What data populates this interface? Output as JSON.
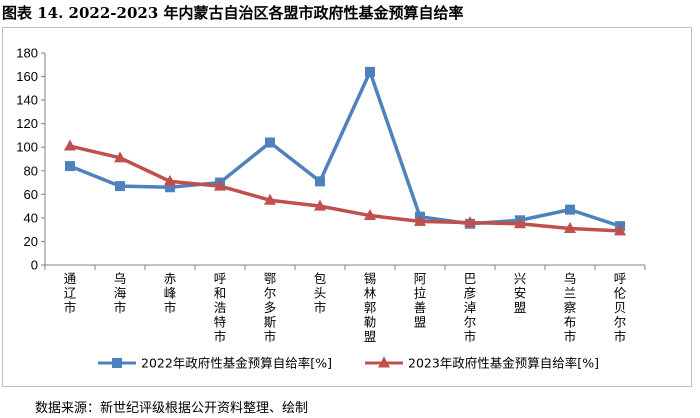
{
  "title": "图表 14. 2022-2023 年内蒙古自治区各盟市政府性基金预算自给率",
  "source": "数据来源：新世纪评级根据公开资料整理、绘制",
  "chart_data": {
    "type": "line",
    "categories": [
      "通辽市",
      "乌海市",
      "赤峰市",
      "呼和浩特市",
      "鄂尔多斯市",
      "包头市",
      "锡林郭勒盟",
      "阿拉善盟",
      "巴彦淖尔市",
      "兴安盟",
      "乌兰察布市",
      "呼伦贝尔市"
    ],
    "series": [
      {
        "name": "2022年政府性基金预算自给率[%]",
        "color": "#4F81BD",
        "marker": "square",
        "values": [
          84,
          67,
          66,
          70,
          104,
          71,
          164,
          41,
          35,
          38,
          47,
          33
        ]
      },
      {
        "name": "2023年政府性基金预算自给率[%]",
        "color": "#C0504D",
        "marker": "triangle",
        "values": [
          101,
          91,
          71,
          67,
          55,
          50,
          42,
          37,
          36,
          35,
          31,
          29
        ]
      }
    ],
    "yticks": [
      0,
      20,
      40,
      60,
      80,
      100,
      120,
      140,
      160,
      180
    ],
    "ylim": [
      0,
      180
    ],
    "grid": false,
    "legend_position": "bottom"
  }
}
